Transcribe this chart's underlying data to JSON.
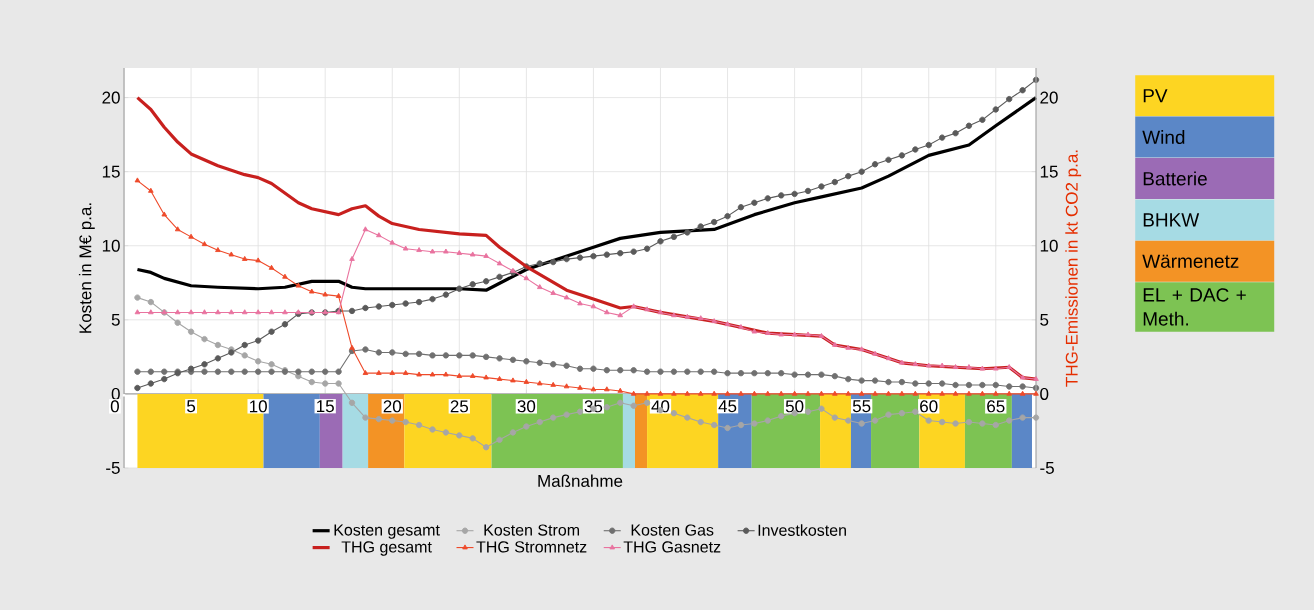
{
  "chart_data": {
    "type": "line",
    "xlabel": "Maßnahme",
    "ylabel": "Kosten in M€ p.a.",
    "y2label": "THG-Emissionen in kt CO2 p.a.",
    "x": [
      1,
      2,
      3,
      4,
      5,
      6,
      7,
      8,
      9,
      10,
      11,
      12,
      13,
      14,
      15,
      16,
      17,
      18,
      19,
      20,
      21,
      22,
      23,
      24,
      25,
      26,
      27,
      28,
      29,
      30,
      31,
      32,
      33,
      34,
      35,
      36,
      37,
      38,
      39,
      40,
      41,
      42,
      43,
      44,
      45,
      46,
      47,
      48,
      49,
      50,
      51,
      52,
      53,
      54,
      55,
      56,
      57,
      58,
      59,
      60,
      61,
      62,
      63,
      64,
      65,
      66,
      67,
      68
    ],
    "xlim": [
      0,
      68
    ],
    "xticks": [
      0,
      5,
      10,
      15,
      20,
      25,
      30,
      35,
      40,
      45,
      50,
      55,
      60,
      65
    ],
    "ylim": [
      -5,
      22
    ],
    "yticks": [
      -5,
      0,
      5,
      10,
      15,
      20
    ],
    "y2lim": [
      -5,
      22
    ],
    "y2ticks": [
      -5,
      0,
      5,
      10,
      15,
      20
    ],
    "grid": true,
    "legend": "bottom",
    "series": [
      {
        "name": "Kosten gesamt",
        "color": "#000000",
        "marker": "none",
        "x": [
          1,
          2,
          3,
          5,
          7,
          10,
          12,
          14,
          16,
          17,
          18,
          20,
          25,
          27,
          30,
          35,
          37,
          40,
          44,
          47,
          50,
          52,
          55,
          57,
          60,
          63,
          65,
          68
        ],
        "values": [
          8.4,
          8.2,
          7.8,
          7.3,
          7.2,
          7.1,
          7.2,
          7.6,
          7.6,
          7.2,
          7.1,
          7.1,
          7.1,
          7.0,
          8.4,
          9.9,
          10.5,
          10.9,
          11.1,
          12.1,
          12.9,
          13.3,
          13.9,
          14.7,
          16.1,
          16.8,
          18.1,
          20.0
        ]
      },
      {
        "name": "Kosten Strom",
        "color": "#a6a6a6",
        "marker": "circle",
        "values": [
          6.5,
          6.2,
          5.5,
          4.8,
          4.2,
          3.7,
          3.3,
          3.0,
          2.6,
          2.2,
          2.0,
          1.6,
          1.2,
          0.8,
          0.7,
          0.7,
          -0.6,
          -1.6,
          -1.7,
          -1.8,
          -1.9,
          -2.1,
          -2.4,
          -2.6,
          -2.8,
          -3.0,
          -3.6,
          -3.1,
          -2.6,
          -2.2,
          -1.9,
          -1.6,
          -1.4,
          -1.2,
          -1.0,
          -0.9,
          -0.6,
          -0.8,
          -0.6,
          -1.1,
          -1.3,
          -1.6,
          -1.9,
          -2.1,
          -2.3,
          -2.1,
          -2.0,
          -1.8,
          -1.5,
          -1.3,
          -1.2,
          -1.0,
          -1.6,
          -1.8,
          -2.0,
          -1.8,
          -1.4,
          -1.3,
          -1.2,
          -1.8,
          -1.9,
          -2.0,
          -1.9,
          -2.0,
          -2.1,
          -1.8,
          -1.6,
          -1.6
        ]
      },
      {
        "name": "Kosten Gas",
        "color": "#707070",
        "marker": "circle",
        "values": [
          1.5,
          1.5,
          1.5,
          1.5,
          1.5,
          1.5,
          1.5,
          1.5,
          1.5,
          1.5,
          1.5,
          1.5,
          1.5,
          1.5,
          1.5,
          1.5,
          2.9,
          3.0,
          2.8,
          2.8,
          2.7,
          2.7,
          2.6,
          2.6,
          2.6,
          2.6,
          2.5,
          2.4,
          2.3,
          2.2,
          2.1,
          2.0,
          1.9,
          1.7,
          1.7,
          1.6,
          1.6,
          1.6,
          1.5,
          1.5,
          1.5,
          1.5,
          1.5,
          1.5,
          1.4,
          1.4,
          1.4,
          1.4,
          1.4,
          1.3,
          1.3,
          1.3,
          1.2,
          1.0,
          0.9,
          0.9,
          0.8,
          0.8,
          0.7,
          0.7,
          0.7,
          0.6,
          0.6,
          0.6,
          0.6,
          0.5,
          0.5,
          0.4
        ]
      },
      {
        "name": "Investkosten",
        "color": "#5a5a5a",
        "marker": "circle",
        "values": [
          0.4,
          0.7,
          1.0,
          1.4,
          1.7,
          2.0,
          2.4,
          2.8,
          3.3,
          3.6,
          4.2,
          4.7,
          5.4,
          5.5,
          5.5,
          5.6,
          5.6,
          5.8,
          5.9,
          6.0,
          6.1,
          6.2,
          6.4,
          6.7,
          7.1,
          7.4,
          7.6,
          7.9,
          8.2,
          8.6,
          8.8,
          8.9,
          9.1,
          9.2,
          9.3,
          9.4,
          9.5,
          9.6,
          9.8,
          10.3,
          10.6,
          10.9,
          11.3,
          11.6,
          12.0,
          12.6,
          12.9,
          13.2,
          13.4,
          13.5,
          13.7,
          14.0,
          14.3,
          14.7,
          15.0,
          15.5,
          15.8,
          16.1,
          16.5,
          16.8,
          17.3,
          17.6,
          18.1,
          18.5,
          19.2,
          19.9,
          20.5,
          21.2
        ]
      },
      {
        "name": "THG gesamt",
        "color": "#c8201e",
        "marker": "none",
        "axis": "y2",
        "x": [
          1,
          2,
          3,
          4,
          5,
          7,
          9,
          10,
          11,
          13,
          14,
          16,
          17,
          18,
          19,
          20,
          22,
          25,
          27,
          28,
          30,
          33,
          35,
          37,
          38,
          40,
          42,
          44,
          46,
          48,
          50,
          52,
          53,
          55,
          56,
          57,
          58,
          60,
          62,
          64,
          66,
          67,
          68
        ],
        "values": [
          20.0,
          19.2,
          18.0,
          17.0,
          16.2,
          15.4,
          14.8,
          14.6,
          14.2,
          12.9,
          12.5,
          12.1,
          12.5,
          12.7,
          12.0,
          11.5,
          11.1,
          10.8,
          10.7,
          9.9,
          8.6,
          7.0,
          6.4,
          5.8,
          5.9,
          5.5,
          5.2,
          4.9,
          4.5,
          4.1,
          4.0,
          3.9,
          3.3,
          3.0,
          2.7,
          2.4,
          2.1,
          1.9,
          1.8,
          1.7,
          1.8,
          1.1,
          1.0
        ]
      },
      {
        "name": "THG Stromnetz",
        "color": "#ee4a2a",
        "marker": "triangle",
        "axis": "y2",
        "values": [
          14.4,
          13.7,
          12.1,
          11.1,
          10.6,
          10.1,
          9.7,
          9.4,
          9.1,
          9.0,
          8.5,
          7.9,
          7.3,
          6.9,
          6.7,
          6.6,
          3.1,
          1.4,
          1.4,
          1.4,
          1.4,
          1.3,
          1.3,
          1.3,
          1.2,
          1.2,
          1.1,
          1.0,
          0.9,
          0.8,
          0.7,
          0.6,
          0.5,
          0.4,
          0.3,
          0.3,
          0.2,
          0,
          0,
          0,
          0,
          0,
          0,
          0,
          0,
          0,
          0,
          0,
          0,
          0,
          0,
          0,
          0,
          0,
          0,
          0,
          0,
          0,
          0,
          0,
          0,
          0,
          0,
          0,
          0,
          0,
          0,
          0
        ]
      },
      {
        "name": "THG Gasnetz",
        "color": "#e9739f",
        "marker": "triangle",
        "axis": "y2",
        "values": [
          5.5,
          5.5,
          5.5,
          5.5,
          5.5,
          5.5,
          5.5,
          5.5,
          5.5,
          5.5,
          5.5,
          5.5,
          5.5,
          5.5,
          5.5,
          5.5,
          9.1,
          11.1,
          10.7,
          10.2,
          9.8,
          9.7,
          9.6,
          9.6,
          9.5,
          9.4,
          9.3,
          8.8,
          8.3,
          7.8,
          7.2,
          6.8,
          6.5,
          6.1,
          5.9,
          5.5,
          5.3,
          5.9,
          5.7,
          5.5,
          5.3,
          5.2,
          5.1,
          4.9,
          4.7,
          4.5,
          4.2,
          4.1,
          4.0,
          4.0,
          4.0,
          3.9,
          3.3,
          3.1,
          3.0,
          2.7,
          2.4,
          2.1,
          2.0,
          1.9,
          1.9,
          1.8,
          1.8,
          1.7,
          1.7,
          1.8,
          1.1,
          1.0
        ]
      }
    ],
    "annotations": [
      "PV",
      "Wind",
      "Batterie",
      "BHKW",
      "Wärmenetz",
      "EL + DAC + Meth."
    ],
    "bands": [
      {
        "axis": "x",
        "from": 1.0,
        "to": 10.4,
        "color": "#fdd522"
      },
      {
        "axis": "x",
        "from": 10.4,
        "to": 14.6,
        "color": "#5b87c7"
      },
      {
        "axis": "x",
        "from": 14.6,
        "to": 16.3,
        "color": "#9b6bb5"
      },
      {
        "axis": "x",
        "from": 16.3,
        "to": 18.2,
        "color": "#a6dbe4"
      },
      {
        "axis": "x",
        "from": 18.2,
        "to": 20.9,
        "color": "#f39325"
      },
      {
        "axis": "x",
        "from": 20.9,
        "to": 27.4,
        "color": "#fdd522"
      },
      {
        "axis": "x",
        "from": 27.4,
        "to": 37.2,
        "color": "#7dc353"
      },
      {
        "axis": "x",
        "from": 37.2,
        "to": 38.1,
        "color": "#a6dbe4"
      },
      {
        "axis": "x",
        "from": 38.1,
        "to": 39.0,
        "color": "#f39325"
      },
      {
        "axis": "x",
        "from": 39.0,
        "to": 44.3,
        "color": "#fdd522"
      },
      {
        "axis": "x",
        "from": 44.3,
        "to": 46.8,
        "color": "#5b87c7"
      },
      {
        "axis": "x",
        "from": 46.8,
        "to": 51.9,
        "color": "#7dc353"
      },
      {
        "axis": "x",
        "from": 51.9,
        "to": 54.2,
        "color": "#fdd522"
      },
      {
        "axis": "x",
        "from": 54.2,
        "to": 55.7,
        "color": "#5b87c7"
      },
      {
        "axis": "x",
        "from": 55.7,
        "to": 59.3,
        "color": "#7dc353"
      },
      {
        "axis": "x",
        "from": 59.3,
        "to": 62.7,
        "color": "#fdd522"
      },
      {
        "axis": "x",
        "from": 62.7,
        "to": 66.2,
        "color": "#7dc353"
      },
      {
        "axis": "x",
        "from": 66.2,
        "to": 67.7,
        "color": "#5b87c7"
      }
    ]
  }
}
